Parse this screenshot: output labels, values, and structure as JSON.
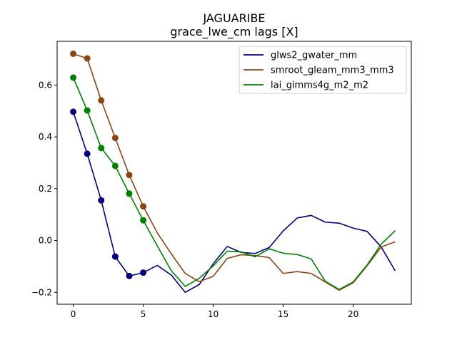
{
  "chart_data": {
    "type": "line",
    "title": "JAGUARIBE",
    "subtitle": "grace_lwe_cm lags [X]",
    "xlabel": "",
    "ylabel": "",
    "xlim": [
      -1.15,
      24.15
    ],
    "ylim": [
      -0.246,
      0.769
    ],
    "xticks": [
      0,
      5,
      10,
      15,
      20
    ],
    "yticks": [
      -0.2,
      0.0,
      0.2,
      0.4,
      0.6
    ],
    "ytick_labels": [
      "−0.2",
      "0.0",
      "0.2",
      "0.4",
      "0.6"
    ],
    "grid": false,
    "legend_position": "top-right",
    "x": [
      0,
      1,
      2,
      3,
      4,
      5,
      6,
      7,
      8,
      9,
      10,
      11,
      12,
      13,
      14,
      15,
      16,
      17,
      18,
      19,
      20,
      21,
      22,
      23
    ],
    "marker_count": 6,
    "series": [
      {
        "name": "glws2_gwater_mm",
        "color": "#00007f",
        "values": [
          0.497,
          0.335,
          0.155,
          -0.062,
          -0.137,
          -0.124,
          -0.096,
          -0.133,
          -0.2,
          -0.17,
          -0.09,
          -0.023,
          -0.046,
          -0.05,
          -0.027,
          0.037,
          0.087,
          0.097,
          0.071,
          0.067,
          0.048,
          0.035,
          -0.025,
          -0.117
        ]
      },
      {
        "name": "smroot_gleam_mm3_mm3",
        "color": "#8b4513",
        "values": [
          0.721,
          0.703,
          0.541,
          0.396,
          0.253,
          0.132,
          0.03,
          -0.051,
          -0.127,
          -0.159,
          -0.138,
          -0.069,
          -0.055,
          -0.058,
          -0.066,
          -0.127,
          -0.12,
          -0.127,
          -0.16,
          -0.192,
          -0.163,
          -0.097,
          -0.025,
          -0.005
        ]
      },
      {
        "name": "lai_gimms4g_m2_m2",
        "color": "#008000",
        "values": [
          0.629,
          0.502,
          0.357,
          0.288,
          0.181,
          0.078,
          -0.02,
          -0.116,
          -0.177,
          -0.146,
          -0.098,
          -0.041,
          -0.044,
          -0.063,
          -0.032,
          -0.049,
          -0.054,
          -0.071,
          -0.157,
          -0.189,
          -0.16,
          -0.094,
          -0.014,
          0.038
        ]
      }
    ]
  }
}
